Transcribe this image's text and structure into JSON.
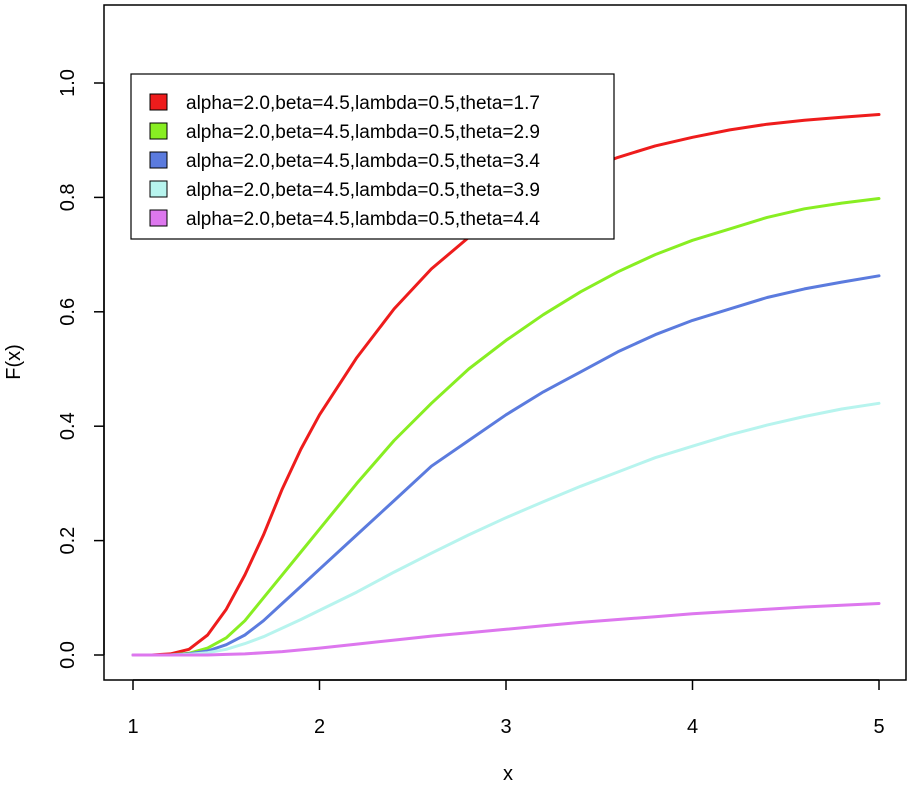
{
  "chart_data": {
    "type": "line",
    "title": "",
    "xlabel": "x",
    "ylabel": "F(x)",
    "xlim": [
      1,
      5
    ],
    "ylim": [
      0,
      1.0
    ],
    "x_ticks": [
      "1",
      "2",
      "3",
      "4",
      "5"
    ],
    "y_ticks": [
      "0.0",
      "0.2",
      "0.4",
      "0.6",
      "0.8",
      "1.0"
    ],
    "legend_position": "top-left",
    "x": [
      1.0,
      1.1,
      1.2,
      1.3,
      1.4,
      1.5,
      1.6,
      1.7,
      1.8,
      1.9,
      2.0,
      2.2,
      2.4,
      2.6,
      2.8,
      3.0,
      3.2,
      3.4,
      3.6,
      3.8,
      4.0,
      4.2,
      4.4,
      4.6,
      4.8,
      5.0
    ],
    "series": [
      {
        "name": "alpha=2.0,beta=4.5,lambda=0.5,theta=1.7",
        "color": "#ee1c1c",
        "values": [
          0.0,
          0.0,
          0.002,
          0.01,
          0.035,
          0.08,
          0.14,
          0.21,
          0.29,
          0.36,
          0.42,
          0.52,
          0.605,
          0.675,
          0.73,
          0.775,
          0.815,
          0.845,
          0.87,
          0.89,
          0.905,
          0.918,
          0.928,
          0.935,
          0.94,
          0.945
        ]
      },
      {
        "name": "alpha=2.0,beta=4.5,lambda=0.5,theta=2.9",
        "color": "#88ee22",
        "values": [
          0.0,
          0.0,
          0.0,
          0.003,
          0.012,
          0.03,
          0.06,
          0.1,
          0.14,
          0.18,
          0.22,
          0.3,
          0.375,
          0.44,
          0.5,
          0.55,
          0.595,
          0.635,
          0.67,
          0.7,
          0.725,
          0.745,
          0.765,
          0.78,
          0.79,
          0.798
        ]
      },
      {
        "name": "alpha=2.0,beta=4.5,lambda=0.5,theta=3.4",
        "color": "#5b7bde",
        "values": [
          0.0,
          0.0,
          0.0,
          0.002,
          0.007,
          0.018,
          0.035,
          0.06,
          0.09,
          0.12,
          0.15,
          0.21,
          0.27,
          0.33,
          0.375,
          0.42,
          0.46,
          0.495,
          0.53,
          0.56,
          0.585,
          0.605,
          0.625,
          0.64,
          0.652,
          0.663
        ]
      },
      {
        "name": "alpha=2.0,beta=4.5,lambda=0.5,theta=3.9",
        "color": "#b7f4ee",
        "values": [
          0.0,
          0.0,
          0.0,
          0.001,
          0.004,
          0.01,
          0.02,
          0.032,
          0.047,
          0.062,
          0.078,
          0.11,
          0.145,
          0.178,
          0.21,
          0.24,
          0.268,
          0.295,
          0.32,
          0.345,
          0.365,
          0.385,
          0.402,
          0.417,
          0.43,
          0.44
        ]
      },
      {
        "name": "alpha=2.0,beta=4.5,lambda=0.5,theta=4.4",
        "color": "#dd77ee",
        "values": [
          0.0,
          0.0,
          0.0,
          0.0,
          0.0,
          0.001,
          0.002,
          0.004,
          0.006,
          0.009,
          0.012,
          0.019,
          0.026,
          0.033,
          0.039,
          0.045,
          0.051,
          0.057,
          0.062,
          0.067,
          0.072,
          0.076,
          0.08,
          0.084,
          0.087,
          0.09
        ]
      }
    ]
  }
}
